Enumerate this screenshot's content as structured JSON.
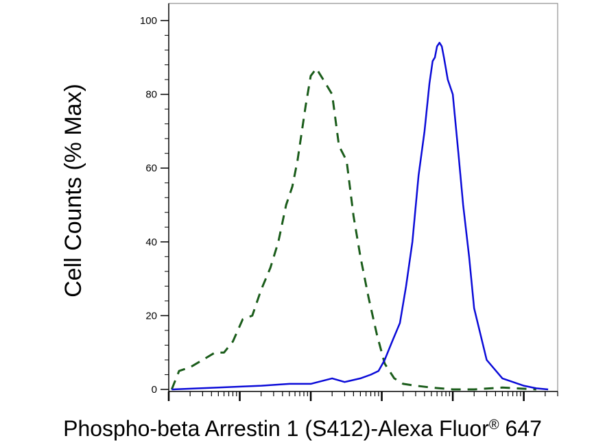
{
  "chart_data": {
    "type": "line",
    "title": "",
    "xlabel": "Phospho-beta Arrestin 1 (S412)-Alexa Fluor",
    "xlabel_superscript": "®",
    "xlabel_suffix": " 647",
    "ylabel": "Cell Counts (% Max)",
    "x_scale": "log",
    "xlim": [
      1,
      300000
    ],
    "ylim": [
      0,
      100
    ],
    "ytick_values": [
      0,
      20,
      40,
      60,
      80,
      100
    ],
    "ytick_labels": [
      "0",
      "20",
      "40",
      "60",
      "80",
      "100"
    ],
    "xtick_labels": [],
    "grid": false,
    "legend": "none",
    "series": [
      {
        "style": "dashed",
        "color": "#1a5c1a",
        "x": [
          1.1,
          1.4,
          2,
          3,
          4.5,
          6,
          8,
          11,
          15,
          20,
          27,
          35,
          45,
          55,
          65,
          75,
          85,
          100,
          120,
          150,
          200,
          250,
          320,
          400,
          500,
          650,
          850,
          1100,
          1500,
          2000,
          3000,
          5000,
          10000,
          20000,
          50000,
          150000
        ],
        "values": [
          0,
          5,
          6,
          8,
          10,
          10,
          13,
          19,
          20,
          27,
          33,
          40,
          50,
          55,
          62,
          70,
          77,
          85,
          87,
          84,
          80,
          66,
          62,
          47,
          36,
          25,
          15,
          7,
          3,
          1.5,
          1,
          0.5,
          0,
          0,
          0.5,
          0
        ]
      },
      {
        "style": "solid",
        "color": "#0a0ad8",
        "x": [
          1.1,
          5,
          20,
          50,
          100,
          200,
          300,
          500,
          700,
          900,
          1100,
          1400,
          1800,
          2200,
          2700,
          3300,
          4000,
          4700,
          5200,
          5600,
          6000,
          6500,
          7000,
          7500,
          8500,
          10000,
          12000,
          14000,
          17000,
          20000,
          30000,
          50000,
          100000,
          150000,
          220000
        ],
        "values": [
          0,
          0.5,
          1,
          1.5,
          1.5,
          3,
          2,
          3,
          4,
          5,
          8,
          13,
          18,
          28,
          40,
          58,
          70,
          83,
          89,
          90,
          93,
          94,
          93,
          90,
          84,
          80,
          64,
          50,
          36,
          22,
          8,
          3,
          1,
          0.3,
          0
        ]
      }
    ]
  }
}
